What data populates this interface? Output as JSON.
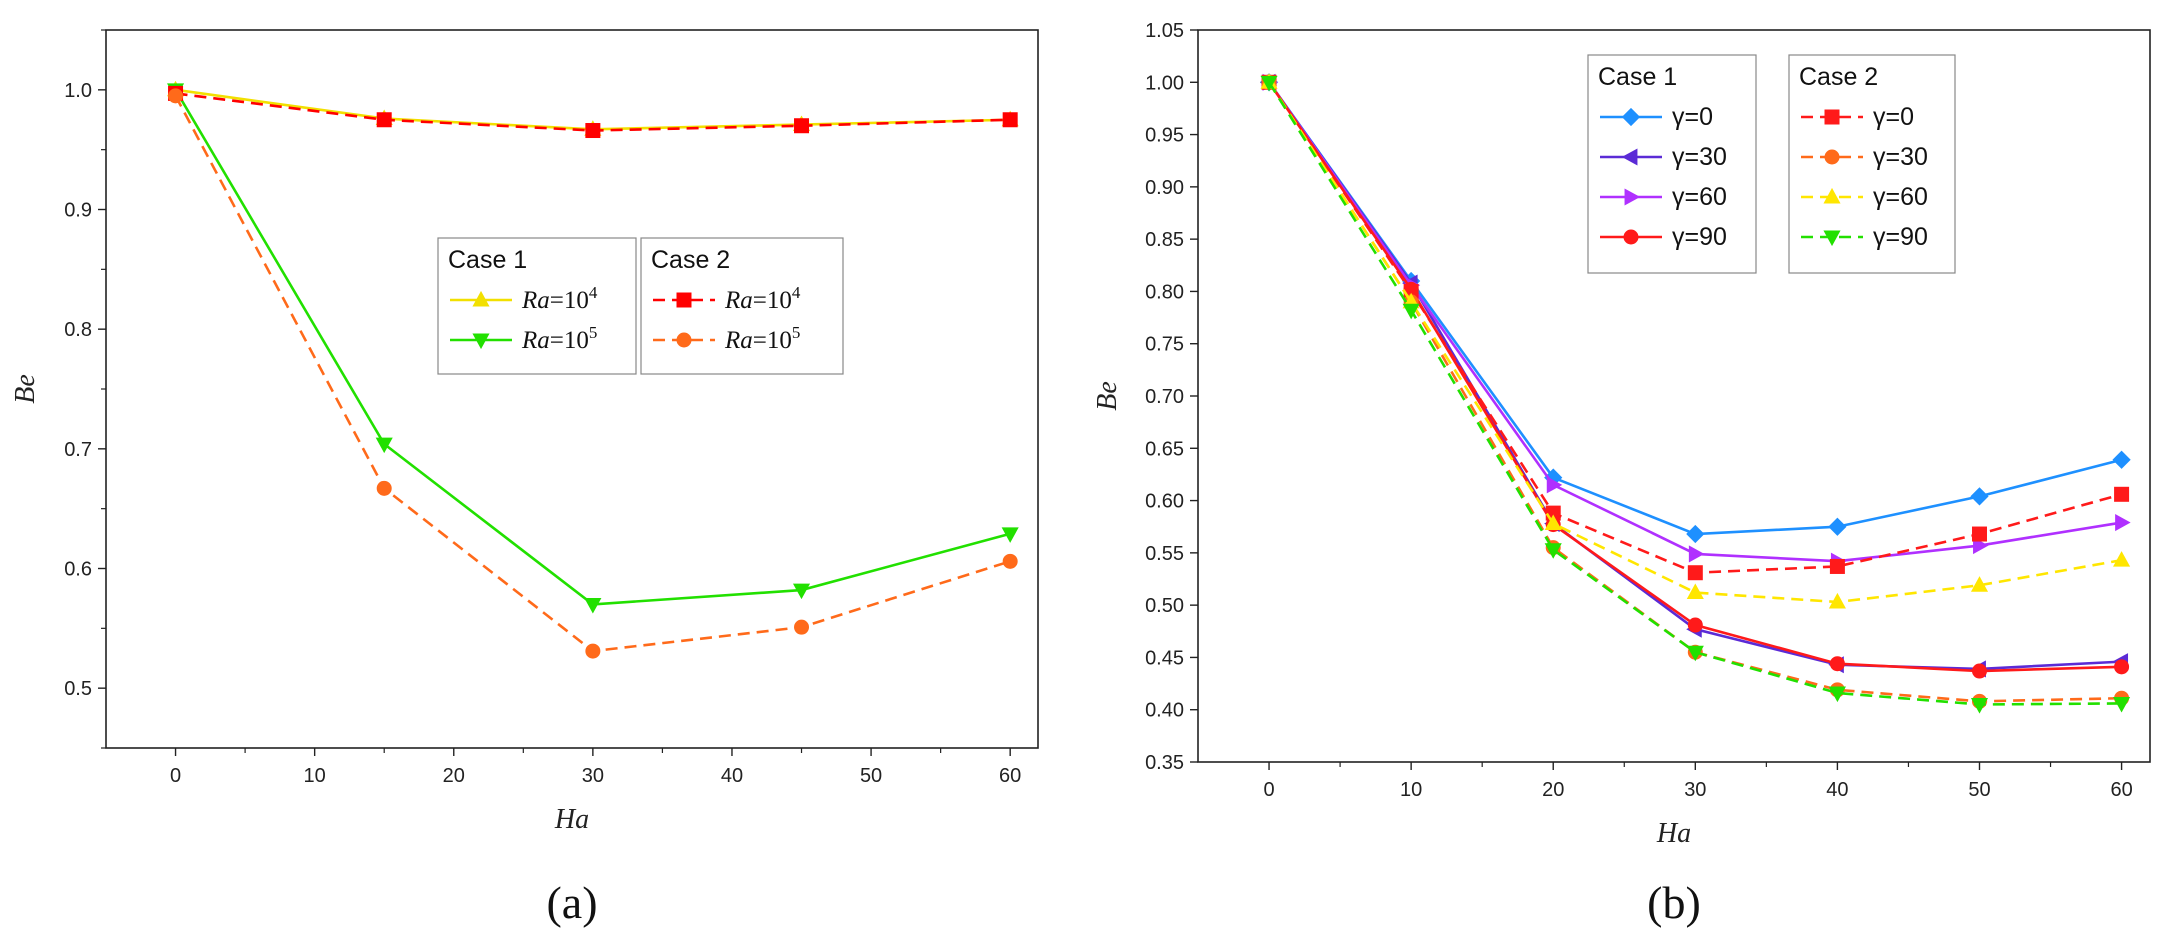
{
  "chart_data": [
    {
      "type": "line",
      "caption": "(a)",
      "xlabel": "Ha",
      "ylabel": "Be",
      "xlim": [
        -5,
        62
      ],
      "ylim": [
        0.45,
        1.05
      ],
      "xticks": [
        0,
        10,
        20,
        30,
        40,
        50,
        60
      ],
      "yticks": [
        0.5,
        0.6,
        0.7,
        0.8,
        0.9,
        1.0
      ],
      "ytick_labels": [
        "0.5",
        "0.6",
        "0.7",
        "0.8",
        "0.9",
        "1.0"
      ],
      "legend_groups": [
        {
          "title": "Case 1",
          "entries": [
            0,
            1
          ]
        },
        {
          "title": "Case 2",
          "entries": [
            2,
            3
          ]
        }
      ],
      "series": [
        {
          "name": "Ra=10^4",
          "label_var": "Ra",
          "label_sup": "4",
          "color": "#f2e000",
          "dash": false,
          "marker": "triangle-up",
          "x": [
            0,
            15,
            30,
            45,
            60
          ],
          "values": [
            1.0,
            0.976,
            0.967,
            0.971,
            0.975
          ]
        },
        {
          "name": "Ra=10^5",
          "label_var": "Ra",
          "label_sup": "5",
          "color": "#22e000",
          "dash": false,
          "marker": "triangle-down",
          "x": [
            0,
            15,
            30,
            45,
            60
          ],
          "values": [
            1.0,
            0.704,
            0.57,
            0.582,
            0.629
          ]
        },
        {
          "name": "Ra=10^4",
          "label_var": "Ra",
          "label_sup": "4",
          "color": "#ff0000",
          "dash": true,
          "marker": "square",
          "x": [
            0,
            15,
            30,
            45,
            60
          ],
          "values": [
            0.997,
            0.975,
            0.966,
            0.97,
            0.975
          ]
        },
        {
          "name": "Ra=10^5",
          "label_var": "Ra",
          "label_sup": "5",
          "color": "#ff6a1a",
          "dash": true,
          "marker": "circle",
          "x": [
            0,
            15,
            30,
            45,
            60
          ],
          "values": [
            0.995,
            0.667,
            0.531,
            0.551,
            0.606
          ]
        }
      ]
    },
    {
      "type": "line",
      "caption": "(b)",
      "xlabel": "Ha",
      "ylabel": "Be",
      "xlim": [
        -5,
        62
      ],
      "ylim": [
        0.35,
        1.05
      ],
      "xticks": [
        0,
        10,
        20,
        30,
        40,
        50,
        60
      ],
      "yticks": [
        0.35,
        0.4,
        0.45,
        0.5,
        0.55,
        0.6,
        0.65,
        0.7,
        0.75,
        0.8,
        0.85,
        0.9,
        0.95,
        1.0,
        1.05
      ],
      "ytick_labels": [
        "0.35",
        "0.40",
        "0.45",
        "0.50",
        "0.55",
        "0.60",
        "0.65",
        "0.70",
        "0.75",
        "0.80",
        "0.85",
        "0.90",
        "0.95",
        "1.00",
        "1.05"
      ],
      "legend_groups": [
        {
          "title": "Case 1",
          "entries": [
            0,
            1,
            2,
            3
          ]
        },
        {
          "title": "Case 2",
          "entries": [
            4,
            5,
            6,
            7
          ]
        }
      ],
      "series": [
        {
          "name": "γ=0",
          "color": "#1e90ff",
          "dash": false,
          "marker": "diamond",
          "x": [
            0,
            10,
            20,
            30,
            40,
            50,
            60
          ],
          "values": [
            1.0,
            0.81,
            0.622,
            0.568,
            0.575,
            0.604,
            0.639
          ]
        },
        {
          "name": "γ=30",
          "color": "#5b2bd6",
          "dash": false,
          "marker": "triangle-left",
          "x": [
            0,
            10,
            20,
            30,
            40,
            50,
            60
          ],
          "values": [
            1.0,
            0.808,
            0.578,
            0.477,
            0.443,
            0.439,
            0.446
          ]
        },
        {
          "name": "γ=60",
          "color": "#b030ff",
          "dash": false,
          "marker": "triangle-right",
          "x": [
            0,
            10,
            20,
            30,
            40,
            50,
            60
          ],
          "values": [
            1.0,
            0.806,
            0.615,
            0.549,
            0.542,
            0.557,
            0.579
          ]
        },
        {
          "name": "γ=90",
          "color": "#ff1a1a",
          "dash": false,
          "marker": "circle",
          "x": [
            0,
            10,
            20,
            30,
            40,
            50,
            60
          ],
          "values": [
            1.0,
            0.802,
            0.577,
            0.481,
            0.444,
            0.437,
            0.441
          ]
        },
        {
          "name": "γ=0",
          "color": "#ff1a1a",
          "dash": true,
          "marker": "square",
          "x": [
            0,
            10,
            20,
            30,
            40,
            50,
            60
          ],
          "values": [
            1.0,
            0.8,
            0.588,
            0.531,
            0.537,
            0.568,
            0.606
          ]
        },
        {
          "name": "γ=30",
          "color": "#ff6a1a",
          "dash": true,
          "marker": "circle",
          "x": [
            0,
            10,
            20,
            30,
            40,
            50,
            60
          ],
          "values": [
            1.0,
            0.79,
            0.555,
            0.455,
            0.419,
            0.408,
            0.411
          ]
        },
        {
          "name": "γ=60",
          "color": "#ffe600",
          "dash": true,
          "marker": "triangle-up",
          "x": [
            0,
            10,
            20,
            30,
            40,
            50,
            60
          ],
          "values": [
            1.0,
            0.79,
            0.578,
            0.512,
            0.503,
            0.519,
            0.543
          ]
        },
        {
          "name": "γ=90",
          "color": "#22e000",
          "dash": true,
          "marker": "triangle-down",
          "x": [
            0,
            10,
            20,
            30,
            40,
            50,
            60
          ],
          "values": [
            1.0,
            0.782,
            0.553,
            0.455,
            0.416,
            0.405,
            0.406
          ]
        }
      ]
    }
  ]
}
